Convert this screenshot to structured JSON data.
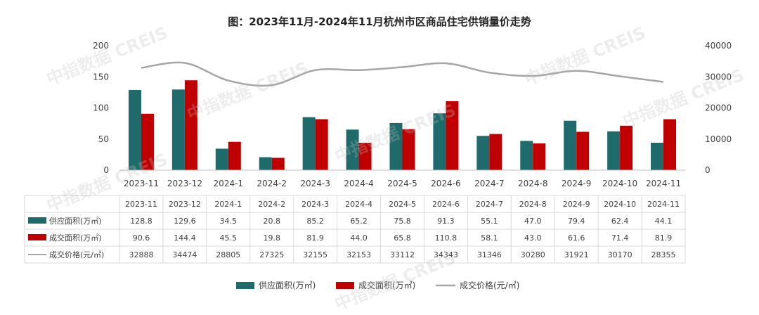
{
  "title": "图：2023年11月-2024年11月杭州市区商品住宅供销量价走势",
  "watermark": "中指数据 CREIS",
  "colors": {
    "supply": "#1f6b6b",
    "sales": "#c00000",
    "price": "#a6a6a6",
    "axis": "#bfbfbf",
    "text": "#404040"
  },
  "chart_data": {
    "type": "bar",
    "categories": [
      "2023-11",
      "2023-12",
      "2024-1",
      "2024-2",
      "2024-3",
      "2024-4",
      "2024-5",
      "2024-6",
      "2024-7",
      "2024-8",
      "2024-9",
      "2024-10",
      "2024-11"
    ],
    "series": [
      {
        "name": "供应面积(万㎡)",
        "type": "bar",
        "axis": "left",
        "values": [
          128.8,
          129.6,
          34.5,
          20.8,
          85.2,
          65.2,
          75.8,
          91.3,
          55.1,
          47.0,
          79.4,
          62.4,
          44.1
        ],
        "labels": [
          "128.8",
          "129.6",
          "34.5",
          "20.8",
          "85.2",
          "65.2",
          "75.8",
          "91.3",
          "55.1",
          "47.0",
          "79.4",
          "62.4",
          "44.1"
        ]
      },
      {
        "name": "成交面积(万㎡)",
        "type": "bar",
        "axis": "left",
        "values": [
          90.6,
          144.4,
          45.5,
          19.8,
          81.9,
          44.0,
          65.8,
          110.8,
          58.1,
          43.0,
          61.6,
          71.4,
          81.9
        ],
        "labels": [
          "90.6",
          "144.4",
          "45.5",
          "19.8",
          "81.9",
          "44.0",
          "65.8",
          "110.8",
          "58.1",
          "43.0",
          "61.6",
          "71.4",
          "81.9"
        ]
      },
      {
        "name": "成交价格(元/㎡)",
        "type": "line",
        "axis": "right",
        "values": [
          32888,
          34474,
          28805,
          27325,
          32155,
          32153,
          33112,
          34343,
          31346,
          30280,
          31921,
          30170,
          28355
        ],
        "labels": [
          "32888",
          "34474",
          "28805",
          "27325",
          "32155",
          "32153",
          "33112",
          "34343",
          "31346",
          "30280",
          "31921",
          "30170",
          "28355"
        ]
      }
    ],
    "y_left": {
      "ylim": [
        0,
        200
      ],
      "ticks": [
        "0",
        "50",
        "100",
        "150",
        "200"
      ]
    },
    "y_right": {
      "ylim": [
        0,
        40000
      ],
      "ticks": [
        "0",
        "10000",
        "20000",
        "30000",
        "40000"
      ]
    },
    "grid": false,
    "legend": "bottom",
    "data_table": true
  }
}
